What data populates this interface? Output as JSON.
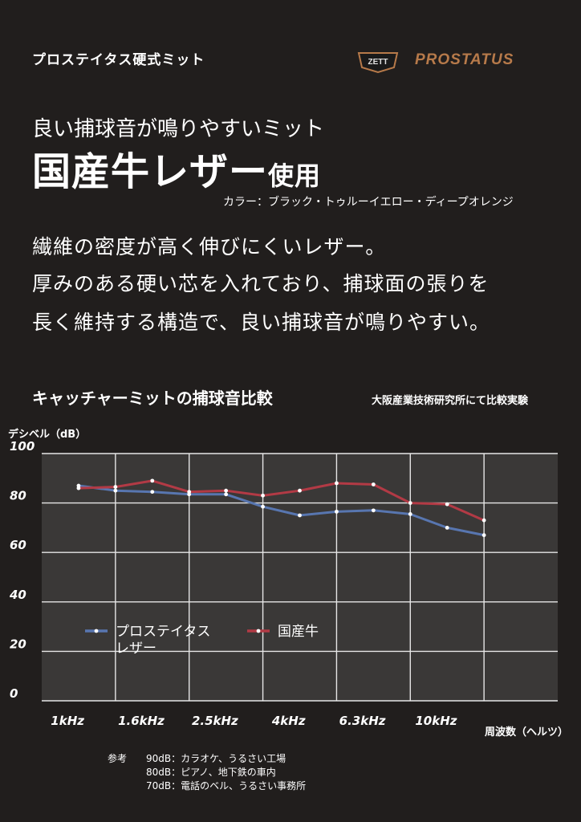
{
  "header": {
    "product_line": "プロステイタス硬式ミット",
    "logo_text": "ZETT",
    "brand": "PROSTATUS"
  },
  "headline": {
    "line1": "良い捕球音が鳴りやすいミット",
    "line2_main": "国産牛レザー",
    "line2_suffix": "使用"
  },
  "color_line": "カラー：ブラック・トゥルーイエロー・ディープオレンジ",
  "description": [
    "繊維の密度が高く伸びにくいレザー。",
    "厚みのある硬い芯を入れており、捕球面の張りを",
    "長く維持する構造で、良い捕球音が鳴りやすい。"
  ],
  "chart_title": "キャッチャーミットの捕球音比較",
  "chart_note": "大阪産業技術研究所にて比較実験",
  "chart_data": {
    "type": "line",
    "ylabel": "デシベル（dB）",
    "xlabel": "周波数（ヘルツ）",
    "ylim": [
      0,
      100
    ],
    "yticks": [
      0,
      20,
      40,
      60,
      80,
      100
    ],
    "xtick_labels": [
      "1kHz",
      "1.6kHz",
      "2.5kHz",
      "4kHz",
      "6.3kHz",
      "10kHz"
    ],
    "x": [
      1,
      1.25,
      1.6,
      2,
      2.5,
      3.15,
      4,
      5,
      6.3,
      8,
      10,
      12.5
    ],
    "grid": true,
    "legend_position": "lower-left",
    "series": [
      {
        "name": "プロステイタスレザー",
        "legend_lines": [
          "プロステイタス",
          "レザー"
        ],
        "color": "#5876b0",
        "values": [
          87,
          85,
          84.5,
          83.5,
          83.5,
          78.5,
          75,
          76.5,
          77,
          75.5,
          70,
          67
        ]
      },
      {
        "name": "国産牛",
        "legend_lines": [
          "国産牛"
        ],
        "color": "#b23a45",
        "values": [
          86,
          86.5,
          89,
          84.5,
          85,
          83,
          85,
          88,
          87.5,
          80,
          79.5,
          73
        ]
      }
    ],
    "plot_background": "#3a3837"
  },
  "reference": {
    "label": "参考",
    "lines": [
      "90dB：カラオケ、うるさい工場",
      "80dB：ピアノ、地下鉄の車内",
      "70dB：電話のベル、うるさい事務所"
    ]
  }
}
